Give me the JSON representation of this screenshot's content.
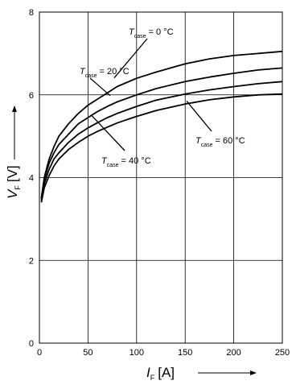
{
  "chart_data": {
    "type": "line",
    "xlabel": {
      "symbol": "I",
      "subscript": "F",
      "unit": "[A]"
    },
    "ylabel": {
      "symbol": "V",
      "subscript": "F",
      "unit": "[V]"
    },
    "xlim": [
      0,
      250
    ],
    "ylim": [
      0,
      8
    ],
    "x_ticks": [
      0,
      50,
      100,
      150,
      200,
      250
    ],
    "y_ticks": [
      0,
      2,
      4,
      6,
      8
    ],
    "grid": true,
    "x": [
      2,
      5,
      10,
      15,
      20,
      30,
      40,
      50,
      60,
      70,
      80,
      100,
      120,
      150,
      175,
      200,
      225,
      250
    ],
    "series": [
      {
        "temp_symbol": "T",
        "temp_subscript": "case",
        "temp_value": "= 0 °C",
        "values": [
          3.5,
          4.0,
          4.45,
          4.75,
          5.0,
          5.3,
          5.55,
          5.75,
          5.9,
          6.05,
          6.2,
          6.4,
          6.55,
          6.75,
          6.87,
          6.95,
          7.0,
          7.05
        ]
      },
      {
        "temp_symbol": "T",
        "temp_subscript": "case",
        "temp_value": "= 20 °C",
        "values": [
          3.5,
          3.95,
          4.35,
          4.6,
          4.8,
          5.05,
          5.3,
          5.45,
          5.6,
          5.72,
          5.83,
          6.0,
          6.15,
          6.32,
          6.43,
          6.52,
          6.6,
          6.65
        ]
      },
      {
        "temp_symbol": "T",
        "temp_subscript": "case",
        "temp_value": "= 40 °C",
        "values": [
          3.45,
          3.85,
          4.2,
          4.45,
          4.6,
          4.85,
          5.05,
          5.2,
          5.33,
          5.45,
          5.55,
          5.72,
          5.87,
          6.02,
          6.12,
          6.2,
          6.27,
          6.32
        ]
      },
      {
        "temp_symbol": "T",
        "temp_subscript": "case",
        "temp_value": "= 60 °C",
        "values": [
          3.4,
          3.75,
          4.05,
          4.28,
          4.45,
          4.68,
          4.85,
          5.0,
          5.12,
          5.22,
          5.32,
          5.48,
          5.62,
          5.78,
          5.88,
          5.95,
          6.0,
          6.02
        ]
      }
    ]
  }
}
